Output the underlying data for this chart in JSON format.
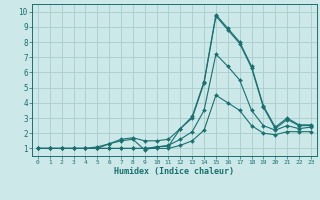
{
  "xlabel": "Humidex (Indice chaleur)",
  "bg_color": "#cce8e8",
  "line_color": "#1a7070",
  "grid_color": "#aacccc",
  "xlim": [
    -0.5,
    23.5
  ],
  "ylim": [
    0.5,
    10.5
  ],
  "xticks": [
    0,
    1,
    2,
    3,
    4,
    5,
    6,
    7,
    8,
    9,
    10,
    11,
    12,
    13,
    14,
    15,
    16,
    17,
    18,
    19,
    20,
    21,
    22,
    23
  ],
  "yticks": [
    1,
    2,
    3,
    4,
    5,
    6,
    7,
    8,
    9,
    10
  ],
  "line1_x": [
    0,
    1,
    2,
    3,
    4,
    5,
    6,
    7,
    8,
    9,
    10,
    11,
    12,
    13,
    14,
    15,
    16,
    17,
    18,
    19,
    20,
    21,
    22,
    23
  ],
  "line1_y": [
    1,
    1,
    1,
    1,
    1,
    1,
    1.3,
    1.5,
    1.6,
    0.9,
    1.1,
    1.15,
    2.3,
    3.1,
    5.4,
    9.8,
    8.9,
    8.0,
    6.4,
    3.8,
    2.4,
    3.0,
    2.55,
    2.55
  ],
  "line2_x": [
    0,
    1,
    2,
    3,
    4,
    5,
    6,
    7,
    8,
    9,
    10,
    11,
    12,
    13,
    14,
    15,
    16,
    17,
    18,
    19,
    20,
    21,
    22,
    23
  ],
  "line2_y": [
    1,
    1,
    1,
    1,
    1,
    1.1,
    1.3,
    1.6,
    1.7,
    1.5,
    1.5,
    1.6,
    2.3,
    3.0,
    5.3,
    9.7,
    8.8,
    7.9,
    6.3,
    3.7,
    2.3,
    2.9,
    2.5,
    2.5
  ],
  "line3_x": [
    0,
    1,
    2,
    3,
    4,
    5,
    6,
    7,
    8,
    9,
    10,
    11,
    12,
    13,
    14,
    15,
    16,
    17,
    18,
    19,
    20,
    21,
    22,
    23
  ],
  "line3_y": [
    1,
    1,
    1,
    1,
    1,
    1,
    1,
    1,
    1,
    1,
    1.1,
    1.2,
    1.6,
    2.1,
    3.5,
    7.2,
    6.4,
    5.5,
    3.5,
    2.5,
    2.2,
    2.5,
    2.3,
    2.4
  ],
  "line4_x": [
    0,
    1,
    2,
    3,
    4,
    5,
    6,
    7,
    8,
    9,
    10,
    11,
    12,
    13,
    14,
    15,
    16,
    17,
    18,
    19,
    20,
    21,
    22,
    23
  ],
  "line4_y": [
    1,
    1,
    1,
    1,
    1,
    1,
    1,
    1,
    1,
    1,
    1,
    1,
    1.2,
    1.5,
    2.2,
    4.5,
    4.0,
    3.5,
    2.5,
    2.0,
    1.9,
    2.1,
    2.1,
    2.1
  ]
}
